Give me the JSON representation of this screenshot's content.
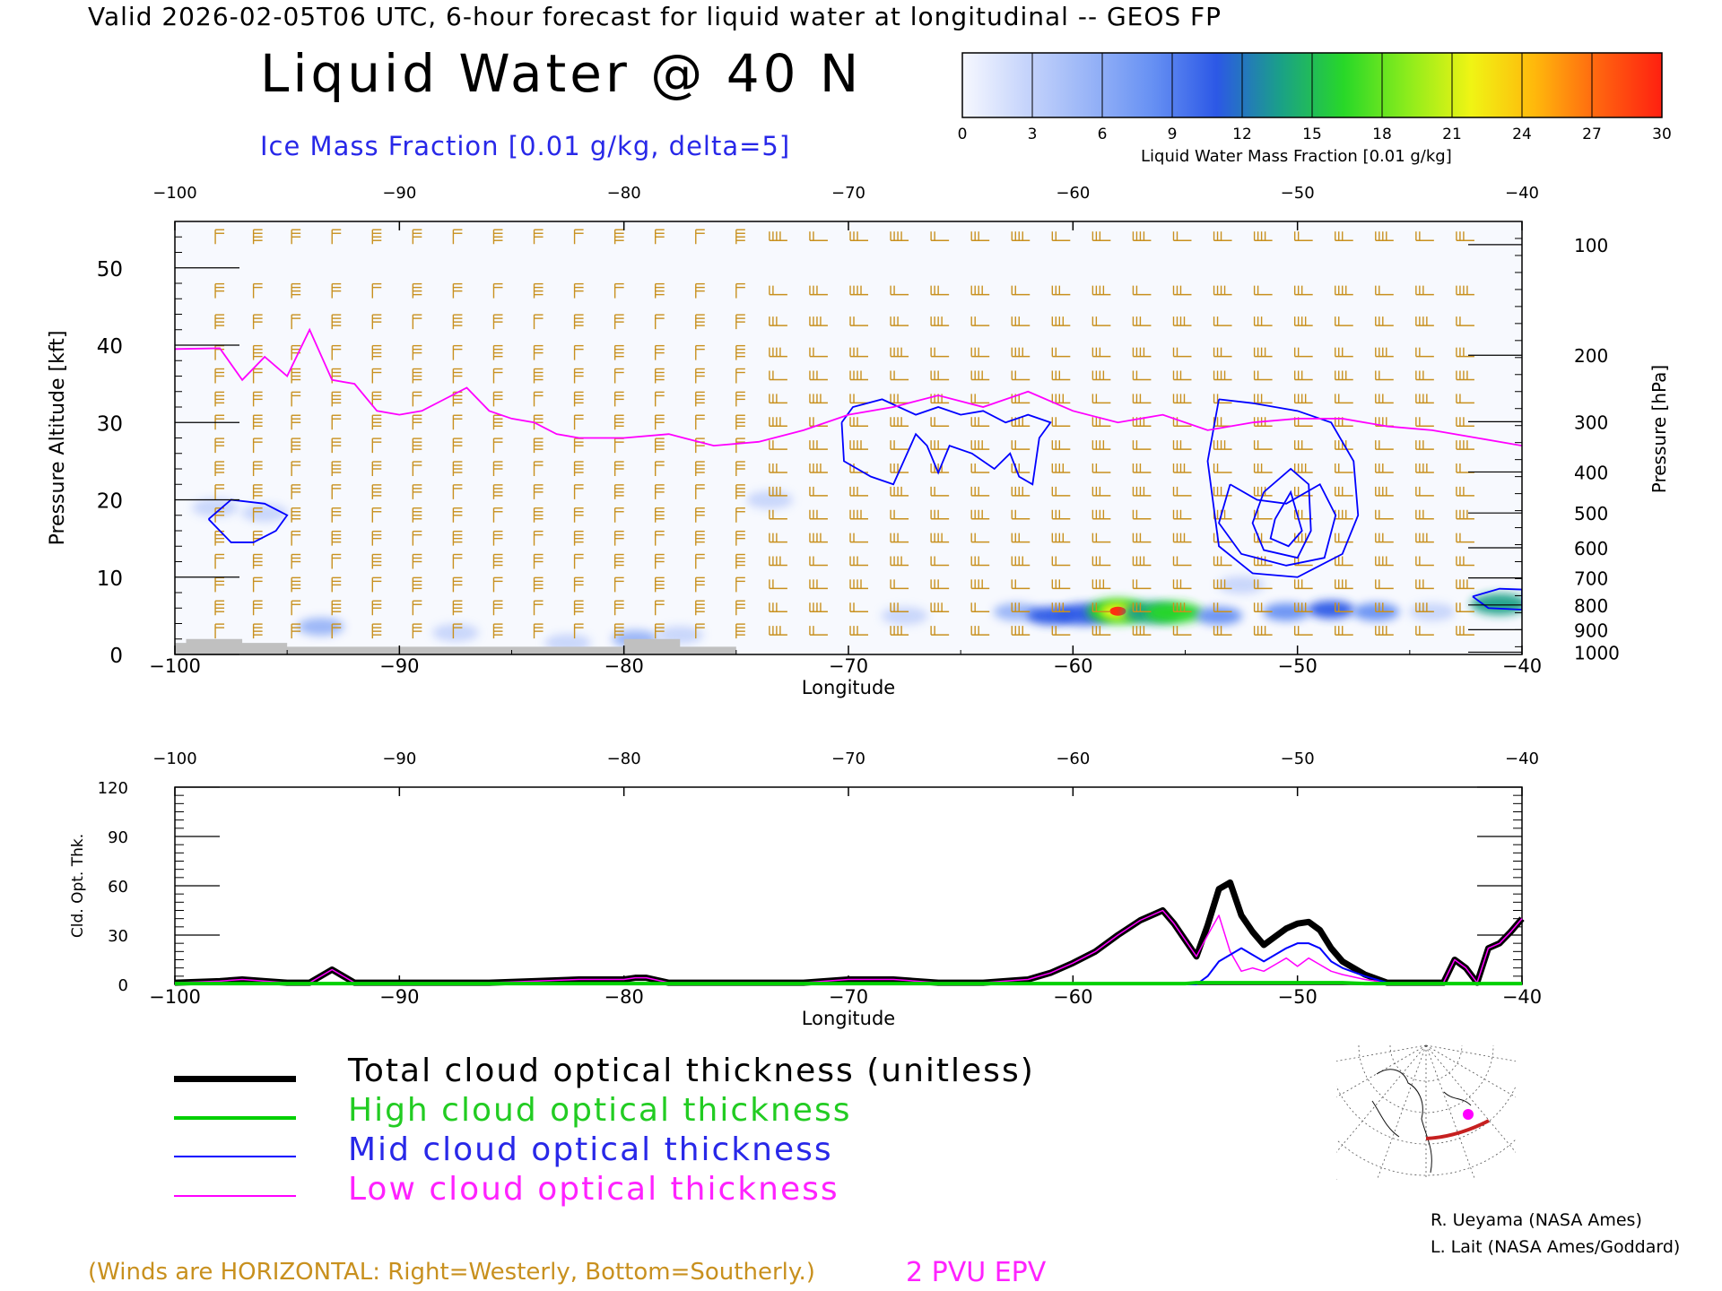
{
  "header": {
    "valid_line": "Valid 2026-02-05T06 UTC, 6-hour forecast for liquid water at longitudinal -- GEOS FP",
    "title": "Liquid Water @ 40 N",
    "subtitle": "Ice Mass Fraction [0.01 g/kg, delta=5]"
  },
  "colorbar": {
    "label": "Liquid Water Mass Fraction [0.01 g/kg]",
    "ticks": [
      "0",
      "3",
      "6",
      "9",
      "12",
      "15",
      "18",
      "21",
      "24",
      "27",
      "30"
    ],
    "colors": [
      "#f6f8ff",
      "#c6d4fb",
      "#98b4f7",
      "#6690f3",
      "#2c58e6",
      "#1aa088",
      "#28d828",
      "#8cec1c",
      "#f0f414",
      "#ffb80c",
      "#ff6410",
      "#ff2010"
    ]
  },
  "chart_data": [
    {
      "type": "heatmap",
      "title": "Liquid Water @ 40 N",
      "xlabel": "Longitude",
      "ylabel": "Pressure Altitude [kft]",
      "ylabel_right": "Pressure [hPa]",
      "xlim": [
        -100,
        -40
      ],
      "ylim": [
        0,
        56
      ],
      "x_ticks": [
        -100,
        -90,
        -80,
        -70,
        -60,
        -50,
        -40
      ],
      "x_tick_labels": [
        "−100",
        "−90",
        "−80",
        "−70",
        "−60",
        "−50",
        "−40"
      ],
      "y_ticks": [
        0,
        10,
        20,
        30,
        40,
        50
      ],
      "y_tick_labels": [
        "0",
        "10",
        "20",
        "30",
        "40",
        "50"
      ],
      "pressure_ticks": [
        {
          "label": "100",
          "kft": 53.0
        },
        {
          "label": "200",
          "kft": 38.7
        },
        {
          "label": "300",
          "kft": 30.1
        },
        {
          "label": "400",
          "kft": 23.6
        },
        {
          "label": "500",
          "kft": 18.3
        },
        {
          "label": "600",
          "kft": 13.8
        },
        {
          "label": "700",
          "kft": 9.9
        },
        {
          "label": "800",
          "kft": 6.4
        },
        {
          "label": "900",
          "kft": 3.2
        },
        {
          "label": "1000",
          "kft": 0.3
        }
      ],
      "liquid_water_blobs": [
        {
          "lon": -98.2,
          "kft": 19.0,
          "value": 4
        },
        {
          "lon": -96.0,
          "kft": 18.3,
          "value": 3
        },
        {
          "lon": -93.5,
          "kft": 3.6,
          "value": 5
        },
        {
          "lon": -87.5,
          "kft": 2.8,
          "value": 3
        },
        {
          "lon": -82.5,
          "kft": 1.5,
          "value": 4
        },
        {
          "lon": -79.5,
          "kft": 2.0,
          "value": 5
        },
        {
          "lon": -77.5,
          "kft": 2.5,
          "value": 4
        },
        {
          "lon": -73.5,
          "kft": 20.0,
          "value": 2
        },
        {
          "lon": -67.5,
          "kft": 5.0,
          "value": 2
        },
        {
          "lon": -62.5,
          "kft": 5.5,
          "value": 6
        },
        {
          "lon": -61.0,
          "kft": 5.0,
          "value": 10
        },
        {
          "lon": -59.5,
          "kft": 5.2,
          "value": 12
        },
        {
          "lon": -58.0,
          "kft": 5.6,
          "value": 30
        },
        {
          "lon": -56.5,
          "kft": 5.4,
          "value": 14
        },
        {
          "lon": -55.5,
          "kft": 5.4,
          "value": 17
        },
        {
          "lon": -53.5,
          "kft": 5.0,
          "value": 8
        },
        {
          "lon": -52.5,
          "kft": 9.0,
          "value": 3
        },
        {
          "lon": -50.5,
          "kft": 5.5,
          "value": 9
        },
        {
          "lon": -48.5,
          "kft": 5.8,
          "value": 10
        },
        {
          "lon": -46.5,
          "kft": 5.5,
          "value": 7
        },
        {
          "lon": -44.0,
          "kft": 5.5,
          "value": 4
        },
        {
          "lon": -41.0,
          "kft": 6.5,
          "value": 14
        }
      ],
      "epv_2pvu_line": {
        "lon": [
          -100,
          -98,
          -97,
          -96,
          -95,
          -94,
          -93,
          -92,
          -91,
          -90,
          -89,
          -88,
          -87,
          -86,
          -85,
          -84,
          -83,
          -82,
          -81,
          -80,
          -78,
          -76,
          -74,
          -72,
          -70,
          -68,
          -66,
          -64,
          -62,
          -60,
          -58,
          -56,
          -54,
          -52,
          -50,
          -48,
          -46,
          -44,
          -42,
          -40
        ],
        "kft": [
          39.5,
          39.6,
          35.5,
          38.5,
          36,
          42,
          35.5,
          35,
          31.5,
          31,
          31.5,
          33,
          34.5,
          31.5,
          30.5,
          30,
          28.5,
          28,
          28,
          28,
          28.5,
          27,
          27.5,
          29,
          31,
          32,
          33.5,
          32,
          34,
          31.5,
          30,
          31,
          29,
          30,
          30.5,
          30.5,
          29.5,
          29,
          28,
          27
        ]
      },
      "ice_contours": [
        {
          "name": "west",
          "lon": [
            -98.5,
            -97.5,
            -96,
            -95,
            -95.5,
            -96.5,
            -97.5,
            -98.5
          ],
          "kft": [
            17.5,
            20,
            19.5,
            18,
            16,
            14.5,
            14.5,
            17.5
          ]
        },
        {
          "name": "central",
          "lon": [
            -70.3,
            -69.8,
            -68.5,
            -67,
            -66,
            -65,
            -64,
            -63,
            -62,
            -61,
            -61.5,
            -61.8,
            -62.4,
            -62.8,
            -63.5,
            -64.5,
            -65.5,
            -66,
            -66.5,
            -67,
            -68,
            -69,
            -70.2,
            -70.3
          ],
          "kft": [
            30,
            32,
            33,
            31,
            32,
            31,
            31.5,
            30,
            31,
            30,
            28,
            22,
            23,
            26,
            24,
            26,
            27,
            23.5,
            27,
            28.5,
            22,
            23,
            25,
            30
          ]
        },
        {
          "name": "east-outer",
          "lon": [
            -53.5,
            -52,
            -50,
            -48.5,
            -47.5,
            -47.3,
            -48,
            -50,
            -52,
            -53.5,
            -54,
            -53.5
          ],
          "kft": [
            33,
            32.5,
            31.5,
            30,
            25,
            18,
            13,
            10,
            10.5,
            14,
            25,
            33
          ]
        },
        {
          "name": "east-mid",
          "lon": [
            -53,
            -51.8,
            -50.5,
            -49,
            -48.3,
            -48.8,
            -50.5,
            -52.5,
            -53.5,
            -53
          ],
          "kft": [
            22,
            20,
            19.5,
            22,
            18,
            12.5,
            11.5,
            13,
            17,
            22
          ]
        },
        {
          "name": "east-inner",
          "lon": [
            -51.5,
            -50.3,
            -49.5,
            -49.4,
            -50,
            -51.5,
            -52,
            -51.5
          ],
          "kft": [
            21,
            24,
            22,
            16,
            12.5,
            13.5,
            17,
            21
          ]
        },
        {
          "name": "east-core",
          "lon": [
            -51,
            -50.3,
            -49.8,
            -50.4,
            -51.2,
            -51
          ],
          "kft": [
            17.5,
            21,
            16,
            14,
            15,
            17.5
          ]
        },
        {
          "name": "far-east",
          "lon": [
            -42.2,
            -41,
            -40,
            -40,
            -41.5,
            -42.2
          ],
          "kft": [
            7.5,
            8.5,
            8.4,
            5.8,
            6,
            7.5
          ]
        }
      ],
      "terrain": {
        "lon": [
          -100,
          -99.5,
          -99.5,
          -97,
          -97,
          -95,
          -95,
          -80,
          -80,
          -77.5,
          -77.5,
          -75,
          -75
        ],
        "kft": [
          1.5,
          1.5,
          2,
          2,
          1.5,
          1.5,
          1.0,
          1.0,
          2.0,
          2.0,
          1.0,
          1.0,
          0
        ]
      },
      "wind_barbs": {
        "lon_columns": [
          -98.2,
          -96.5,
          -94.8,
          -93.0,
          -91.2,
          -89.4,
          -87.6,
          -85.8,
          -84.0,
          -82.2,
          -80.4,
          -78.6,
          -76.8,
          -75.0,
          -73.2,
          -71.4,
          -69.6,
          -67.8,
          -66.0,
          -64.2,
          -62.4,
          -60.6,
          -58.8,
          -57.0,
          -55.2,
          -53.4,
          -51.6,
          -49.8,
          -48.0,
          -46.2,
          -44.4,
          -42.6
        ],
        "levels_kft": [
          54,
          47,
          43,
          39,
          36,
          33,
          30,
          27,
          24,
          21,
          18,
          15,
          12,
          9,
          6,
          3
        ]
      }
    },
    {
      "type": "line",
      "xlabel": "Longitude",
      "ylabel": "Cld. Opt. Thk.",
      "xlim": [
        -100,
        -40
      ],
      "ylim": [
        0,
        120
      ],
      "x_ticks": [
        -100,
        -90,
        -80,
        -70,
        -60,
        -50,
        -40
      ],
      "x_tick_labels": [
        "−100",
        "−90",
        "−80",
        "−70",
        "−60",
        "−50",
        "−40"
      ],
      "y_ticks": [
        0,
        30,
        60,
        90,
        120
      ],
      "y_tick_labels": [
        "0",
        "30",
        "60",
        "90",
        "120"
      ],
      "x": [
        -100,
        -98,
        -97,
        -96,
        -95,
        -94,
        -93,
        -92,
        -90,
        -88,
        -86,
        -84,
        -82,
        -80,
        -79.5,
        -79,
        -78,
        -75,
        -72,
        -70,
        -68,
        -66,
        -64,
        -62,
        -61,
        -60,
        -59,
        -58,
        -57,
        -56,
        -55.5,
        -55,
        -54.5,
        -54,
        -53.5,
        -53,
        -52.5,
        -52,
        -51.5,
        -51,
        -50.5,
        -50,
        -49.5,
        -49,
        -48.5,
        -48,
        -47,
        -46,
        -45,
        -44,
        -43.5,
        -43,
        -42.5,
        -42,
        -41.5,
        -41,
        -40.5,
        -40
      ],
      "series": [
        {
          "name": "Total cloud optical thickness (unitless)",
          "color": "#000000",
          "values": [
            1,
            2,
            3,
            2,
            1,
            1,
            9,
            1,
            1,
            1,
            1,
            2,
            3,
            3,
            4,
            4,
            1,
            1,
            1,
            3,
            3,
            1,
            1,
            3,
            7,
            13,
            20,
            30,
            39,
            45,
            37,
            27,
            17,
            36,
            58,
            62,
            42,
            32,
            24,
            29,
            34,
            37,
            38,
            33,
            22,
            14,
            6,
            1,
            1,
            1,
            1,
            15,
            10,
            1,
            22,
            25,
            32,
            40
          ]
        },
        {
          "name": "High cloud optical thickness",
          "color": "#00d000",
          "values": [
            0.5,
            0.5,
            0.5,
            0.5,
            0.5,
            0.5,
            0.5,
            0.5,
            0.5,
            0.5,
            0.5,
            0.5,
            0.5,
            0.5,
            0.5,
            0.5,
            0.5,
            0.5,
            0.5,
            0.5,
            0.5,
            0.5,
            0.5,
            0.5,
            0.5,
            0.5,
            0.5,
            0.5,
            0.5,
            0.5,
            0.5,
            0.5,
            1,
            1,
            1,
            1,
            1,
            1,
            1,
            1,
            1,
            1,
            1,
            1,
            1,
            1,
            0.5,
            0.5,
            0.5,
            0.5,
            0.5,
            0.5,
            0.5,
            0.5,
            0.5,
            0.5,
            0.5,
            0.5
          ]
        },
        {
          "name": "Mid cloud optical thickness",
          "color": "#0000ff",
          "values": [
            0,
            0,
            0,
            0,
            0,
            0,
            0,
            0,
            0,
            0,
            0,
            0,
            0,
            0,
            0,
            0,
            0,
            0,
            0,
            0,
            0,
            0,
            0,
            0,
            0,
            0,
            0,
            0,
            0,
            0,
            0,
            0,
            0,
            5,
            14,
            18,
            22,
            18,
            14,
            18,
            22,
            25,
            25,
            22,
            14,
            10,
            5,
            1,
            0,
            0,
            0,
            0,
            0,
            0,
            0,
            0,
            0,
            0
          ]
        },
        {
          "name": "Low cloud optical thickness",
          "color": "#ff00ff",
          "values": [
            1,
            2,
            3,
            2,
            1,
            1,
            9,
            1,
            1,
            1,
            1,
            2,
            3,
            3,
            4,
            4,
            1,
            1,
            1,
            3,
            3,
            1,
            1,
            3,
            7,
            13,
            20,
            30,
            39,
            45,
            37,
            27,
            17,
            30,
            42,
            20,
            8,
            10,
            8,
            12,
            16,
            11,
            16,
            12,
            8,
            6,
            3,
            1,
            1,
            1,
            1,
            15,
            10,
            1,
            22,
            25,
            32,
            40
          ]
        }
      ]
    }
  ],
  "legend": {
    "items": [
      {
        "label": "Total cloud optical thickness (unitless)",
        "color": "#000000",
        "text_color": "#000000"
      },
      {
        "label": "High cloud optical thickness",
        "color": "#00d000",
        "text_color": "#22cc22"
      },
      {
        "label": "Mid cloud optical thickness",
        "color": "#0000ff",
        "text_color": "#2828e8"
      },
      {
        "label": "Low cloud optical thickness",
        "color": "#ff00ff",
        "text_color": "#ff22ff"
      }
    ]
  },
  "footer": {
    "winds_note": "(Winds are HORIZONTAL: Right=Westerly, Bottom=Southerly.)",
    "epv_note": "2 PVU EPV",
    "credit1": "R. Ueyama (NASA Ames)",
    "credit2": "L. Lait (NASA Ames/Goddard)"
  },
  "colors": {
    "wind_barb": "#c8901e",
    "ice_contour": "#0000ff",
    "epv_line": "#ff00ff",
    "terrain": "#c0c0c0"
  }
}
